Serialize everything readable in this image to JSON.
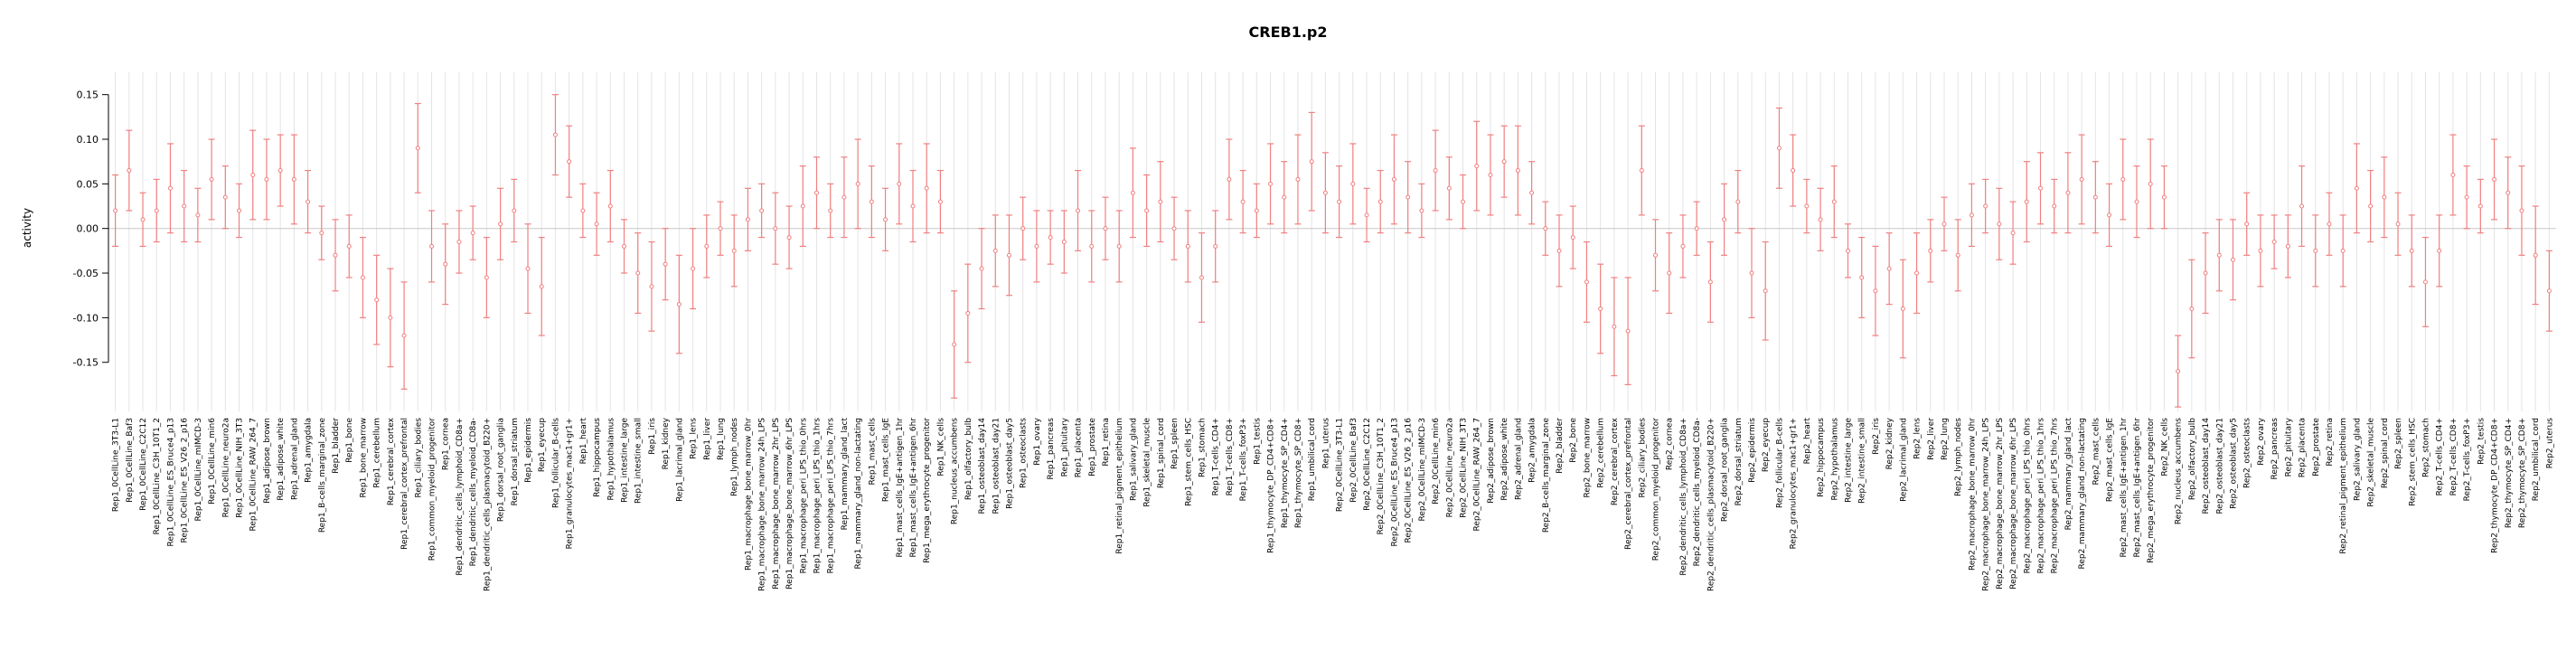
{
  "chart_data": {
    "type": "scatter",
    "error_bars": true,
    "title": "CREB1.p2",
    "xlabel": "",
    "ylabel": "activity",
    "ylim": [
      -0.205,
      0.175
    ],
    "yticks": [
      0.15,
      0.1,
      0.05,
      0.0,
      -0.05,
      -0.1,
      -0.15
    ],
    "grid": "vertical-per-category",
    "legend": "none",
    "point_color": "#f08080",
    "grid_color": "#e4e4e4",
    "zero_line_color": "#c8c8c8",
    "categories": [
      "Rep1_0CellLine_3T3-L1",
      "Rep1_0CellLine_Baf3",
      "Rep1_0CellLine_C2C12",
      "Rep1_0CellLine_C3H_10T1_2",
      "Rep1_0CellLine_ES_Bruce4_p13",
      "Rep1_0CellLine_ES_V26_2_p16",
      "Rep1_0CellLine_mIMCD-3",
      "Rep1_0CellLine_min6",
      "Rep1_0CellLine_neuro2a",
      "Rep1_0CellLine_NIH_3T3",
      "Rep1_0CellLine_RAW_264_7",
      "Rep1_adipose_brown",
      "Rep1_adipose_white",
      "Rep1_adrenal_gland",
      "Rep1_amygdala",
      "Rep1_B-cells_marginal_zone",
      "Rep1_bladder",
      "Rep1_bone",
      "Rep1_bone_marrow",
      "Rep1_cerebellum",
      "Rep1_cerebral_cortex",
      "Rep1_cerebral_cortex_prefrontal",
      "Rep1_ciliary_bodies",
      "Rep1_common_myeloid_progenitor",
      "Rep1_cornea",
      "Rep1_dendritic_cells_lymphoid_CD8a+",
      "Rep1_dendritic_cells_myeloid_CD8a-",
      "Rep1_dendritic_cells_plasmacytoid_B220+",
      "Rep1_dorsal_root_ganglia",
      "Rep1_dorsal_striatum",
      "Rep1_epidermis",
      "Rep1_eyecup",
      "Rep1_follicular_B-cells",
      "Rep1_granulocytes_mac1+gr1+",
      "Rep1_heart",
      "Rep1_hippocampus",
      "Rep1_hypothalamus",
      "Rep1_intestine_large",
      "Rep1_intestine_small",
      "Rep1_iris",
      "Rep1_kidney",
      "Rep1_lacrimal_gland",
      "Rep1_lens",
      "Rep1_liver",
      "Rep1_lung",
      "Rep1_lymph_nodes",
      "Rep1_macrophage_bone_marrow_0hr",
      "Rep1_macrophage_bone_marrow_24h_LPS",
      "Rep1_macrophage_bone_marrow_2hr_LPS",
      "Rep1_macrophage_bone_marrow_6hr_LPS",
      "Rep1_macrophage_peri_LPS_thio_0hrs",
      "Rep1_macrophage_peri_LPS_thio_1hrs",
      "Rep1_macrophage_peri_LPS_thio_7hrs",
      "Rep1_mammary_gland_lact",
      "Rep1_mammary_gland_non-lactating",
      "Rep1_mast_cells",
      "Rep1_mast_cells_IgE",
      "Rep1_mast_cells_IgE+antigen_1hr",
      "Rep1_mast_cells_IgE+antigen_6hr",
      "Rep1_mega_erythrocyte_progenitor",
      "Rep1_NK_cells",
      "Rep1_nucleus_accumbens",
      "Rep1_olfactory_bulb",
      "Rep1_osteoblast_day14",
      "Rep1_osteoblast_day21",
      "Rep1_osteoblast_day5",
      "Rep1_osteoclasts",
      "Rep1_ovary",
      "Rep1_pancreas",
      "Rep1_pituitary",
      "Rep1_placenta",
      "Rep1_prostate",
      "Rep1_retina",
      "Rep1_retinal_pigment_epithelium",
      "Rep1_salivary_gland",
      "Rep1_skeletal_muscle",
      "Rep1_spinal_cord",
      "Rep1_spleen",
      "Rep1_stem_cells_HSC",
      "Rep1_stomach",
      "Rep1_T-cells_CD4+",
      "Rep1_T-cells_CD8+",
      "Rep1_T-cells_foxP3+",
      "Rep1_testis",
      "Rep1_thymocyte_DP_CD4+CD8+",
      "Rep1_thymocyte_SP_CD4+",
      "Rep1_thymocyte_SP_CD8+",
      "Rep1_umbilical_cord",
      "Rep1_uterus",
      "Rep2_0CellLine_3T3-L1",
      "Rep2_0CellLine_Baf3",
      "Rep2_0CellLine_C2C12",
      "Rep2_0CellLine_C3H_10T1_2",
      "Rep2_0CellLine_ES_Bruce4_p13",
      "Rep2_0CellLine_ES_V26_2_p16",
      "Rep2_0CellLine_mIMCD-3",
      "Rep2_0CellLine_min6",
      "Rep2_0CellLine_neuro2a",
      "Rep2_0CellLine_NIH_3T3",
      "Rep2_0CellLine_RAW_264_7",
      "Rep2_adipose_brown",
      "Rep2_adipose_white",
      "Rep2_adrenal_gland",
      "Rep2_amygdala",
      "Rep2_B-cells_marginal_zone",
      "Rep2_bladder",
      "Rep2_bone",
      "Rep2_bone_marrow",
      "Rep2_cerebellum",
      "Rep2_cerebral_cortex",
      "Rep2_cerebral_cortex_prefrontal",
      "Rep2_ciliary_bodies",
      "Rep2_common_myeloid_progenitor",
      "Rep2_cornea",
      "Rep2_dendritic_cells_lymphoid_CD8a+",
      "Rep2_dendritic_cells_myeloid_CD8a-",
      "Rep2_dendritic_cells_plasmacytoid_B220+",
      "Rep2_dorsal_root_ganglia",
      "Rep2_dorsal_striatum",
      "Rep2_epidermis",
      "Rep2_eyecup",
      "Rep2_follicular_B-cells",
      "Rep2_granulocytes_mac1+gr1+",
      "Rep2_heart",
      "Rep2_hippocampus",
      "Rep2_hypothalamus",
      "Rep2_intestine_large",
      "Rep2_intestine_small",
      "Rep2_iris",
      "Rep2_kidney",
      "Rep2_lacrimal_gland",
      "Rep2_lens",
      "Rep2_liver",
      "Rep2_lung",
      "Rep2_lymph_nodes",
      "Rep2_macrophage_bone_marrow_0hr",
      "Rep2_macrophage_bone_marrow_24h_LPS",
      "Rep2_macrophage_bone_marrow_2hr_LPS",
      "Rep2_macrophage_bone_marrow_6hr_LPS",
      "Rep2_macrophage_peri_LPS_thio_0hrs",
      "Rep2_macrophage_peri_LPS_thio_1hrs",
      "Rep2_macrophage_peri_LPS_thio_7hrs",
      "Rep2_mammary_gland_lact",
      "Rep2_mammary_gland_non-lactating",
      "Rep2_mast_cells",
      "Rep2_mast_cells_IgE",
      "Rep2_mast_cells_IgE+antigen_1hr",
      "Rep2_mast_cells_IgE+antigen_6hr",
      "Rep2_mega_erythrocyte_progenitor",
      "Rep2_NK_cells",
      "Rep2_nucleus_accumbens",
      "Rep2_olfactory_bulb",
      "Rep2_osteoblast_day14",
      "Rep2_osteoblast_day21",
      "Rep2_osteoblast_day5",
      "Rep2_osteoclasts",
      "Rep2_ovary",
      "Rep2_pancreas",
      "Rep2_pituitary",
      "Rep2_placenta",
      "Rep2_prostate",
      "Rep2_retina",
      "Rep2_retinal_pigment_epithelium",
      "Rep2_salivary_gland",
      "Rep2_skeletal_muscle",
      "Rep2_spinal_cord",
      "Rep2_spleen",
      "Rep2_stem_cells_HSC",
      "Rep2_stomach",
      "Rep2_T-cells_CD4+",
      "Rep2_T-cells_CD8+",
      "Rep2_T-cells_foxP3+",
      "Rep2_testis",
      "Rep2_thymocyte_DP_CD4+CD8+",
      "Rep2_thymocyte_SP_CD4+",
      "Rep2_thymocyte_SP_CD8+",
      "Rep2_umbilical_cord",
      "Rep2_uterus"
    ],
    "values": [
      0.02,
      0.065,
      0.01,
      0.02,
      0.045,
      0.025,
      0.015,
      0.055,
      0.035,
      0.02,
      0.06,
      0.055,
      0.065,
      0.055,
      0.03,
      -0.005,
      -0.03,
      -0.02,
      -0.055,
      -0.08,
      -0.1,
      -0.12,
      0.09,
      -0.02,
      -0.04,
      -0.015,
      -0.005,
      -0.055,
      0.005,
      0.02,
      -0.045,
      -0.065,
      0.105,
      0.075,
      0.02,
      0.005,
      0.025,
      -0.02,
      -0.05,
      -0.065,
      -0.04,
      -0.085,
      -0.045,
      -0.02,
      0.0,
      -0.025,
      0.01,
      0.02,
      0.0,
      -0.01,
      0.025,
      0.04,
      0.02,
      0.035,
      0.05,
      0.03,
      0.01,
      0.05,
      0.025,
      0.045,
      0.03,
      -0.13,
      -0.095,
      -0.045,
      -0.025,
      -0.03,
      0.0,
      -0.02,
      -0.01,
      -0.015,
      0.02,
      -0.02,
      0.0,
      -0.02,
      0.04,
      0.02,
      0.03,
      0.0,
      -0.02,
      -0.055,
      -0.02,
      0.055,
      0.03,
      0.02,
      0.05,
      0.035,
      0.055,
      0.075,
      0.04,
      0.03,
      0.05,
      0.015,
      0.03,
      0.055,
      0.035,
      0.02,
      0.065,
      0.045,
      0.03,
      0.07,
      0.06,
      0.075,
      0.065,
      0.04,
      0.0,
      -0.025,
      -0.01,
      -0.06,
      -0.09,
      -0.11,
      -0.115,
      0.065,
      -0.03,
      -0.05,
      -0.02,
      0.0,
      -0.06,
      0.01,
      0.03,
      -0.05,
      -0.07,
      0.09,
      0.065,
      0.025,
      0.01,
      0.03,
      -0.025,
      -0.055,
      -0.07,
      -0.045,
      -0.09,
      -0.05,
      -0.025,
      0.005,
      -0.03,
      0.015,
      0.025,
      0.005,
      -0.005,
      0.03,
      0.045,
      0.025,
      0.04,
      0.055,
      0.035,
      0.015,
      0.055,
      0.03,
      0.05,
      0.035,
      -0.16,
      -0.09,
      -0.05,
      -0.03,
      -0.035,
      0.005,
      -0.025,
      -0.015,
      -0.02,
      0.025,
      -0.025,
      0.005,
      -0.025,
      0.045,
      0.025,
      0.035,
      0.005,
      -0.025,
      -0.06,
      -0.025,
      0.06,
      0.035,
      0.025,
      0.055,
      0.04,
      0.02,
      -0.03,
      -0.07
    ],
    "errors": [
      0.04,
      0.045,
      0.03,
      0.035,
      0.05,
      0.04,
      0.03,
      0.045,
      0.035,
      0.03,
      0.05,
      0.045,
      0.04,
      0.05,
      0.035,
      0.03,
      0.04,
      0.035,
      0.045,
      0.05,
      0.055,
      0.06,
      0.05,
      0.04,
      0.045,
      0.035,
      0.03,
      0.045,
      0.04,
      0.035,
      0.05,
      0.055,
      0.045,
      0.04,
      0.03,
      0.035,
      0.04,
      0.03,
      0.045,
      0.05,
      0.04,
      0.055,
      0.045,
      0.035,
      0.03,
      0.04,
      0.035,
      0.03,
      0.04,
      0.035,
      0.045,
      0.04,
      0.03,
      0.045,
      0.05,
      0.04,
      0.035,
      0.045,
      0.04,
      0.05,
      0.035,
      0.06,
      0.055,
      0.045,
      0.04,
      0.045,
      0.035,
      0.04,
      0.03,
      0.035,
      0.045,
      0.04,
      0.035,
      0.04,
      0.05,
      0.04,
      0.045,
      0.035,
      0.04,
      0.05,
      0.04,
      0.045,
      0.035,
      0.03,
      0.045,
      0.04,
      0.05,
      0.055,
      0.045,
      0.04,
      0.045,
      0.03,
      0.035,
      0.05,
      0.04,
      0.03,
      0.045,
      0.035,
      0.03,
      0.05,
      0.045,
      0.04,
      0.05,
      0.035,
      0.03,
      0.04,
      0.035,
      0.045,
      0.05,
      0.055,
      0.06,
      0.05,
      0.04,
      0.045,
      0.035,
      0.03,
      0.045,
      0.04,
      0.035,
      0.05,
      0.055,
      0.045,
      0.04,
      0.03,
      0.035,
      0.04,
      0.03,
      0.045,
      0.05,
      0.04,
      0.055,
      0.045,
      0.035,
      0.03,
      0.04,
      0.035,
      0.03,
      0.04,
      0.035,
      0.045,
      0.04,
      0.03,
      0.045,
      0.05,
      0.04,
      0.035,
      0.045,
      0.04,
      0.05,
      0.035,
      0.04,
      0.055,
      0.045,
      0.04,
      0.045,
      0.035,
      0.04,
      0.03,
      0.035,
      0.045,
      0.04,
      0.035,
      0.04,
      0.05,
      0.04,
      0.045,
      0.035,
      0.04,
      0.05,
      0.04,
      0.045,
      0.035,
      0.03,
      0.045,
      0.04,
      0.05,
      0.055,
      0.045
    ]
  }
}
